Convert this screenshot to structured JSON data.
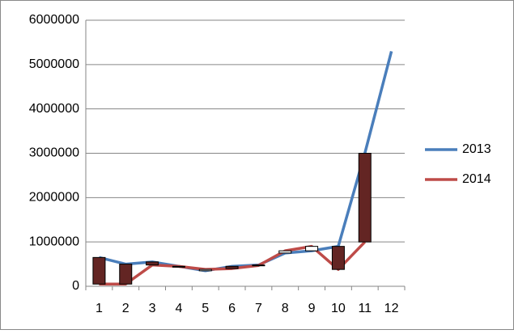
{
  "chart_data": {
    "type": "line",
    "categories": [
      "1",
      "2",
      "3",
      "4",
      "5",
      "6",
      "7",
      "8",
      "9",
      "10",
      "11",
      "12"
    ],
    "series": [
      {
        "name": "2013",
        "color": "#4a7ebb",
        "values": [
          650000,
          500000,
          550000,
          450000,
          350000,
          450000,
          480000,
          750000,
          800000,
          900000,
          3000000,
          5300000
        ]
      },
      {
        "name": "2014",
        "color": "#be4b48",
        "values": [
          50000,
          50000,
          480000,
          450000,
          380000,
          400000,
          470000,
          800000,
          900000,
          380000,
          1000000,
          null
        ]
      }
    ],
    "up_down_bars": true,
    "up_bar_color": "#ffffff",
    "down_bar_color": "#632523",
    "ylim": [
      0,
      6000000
    ],
    "yticks": [
      0,
      1000000,
      2000000,
      3000000,
      4000000,
      5000000,
      6000000
    ],
    "grid": true,
    "legend": "right"
  }
}
